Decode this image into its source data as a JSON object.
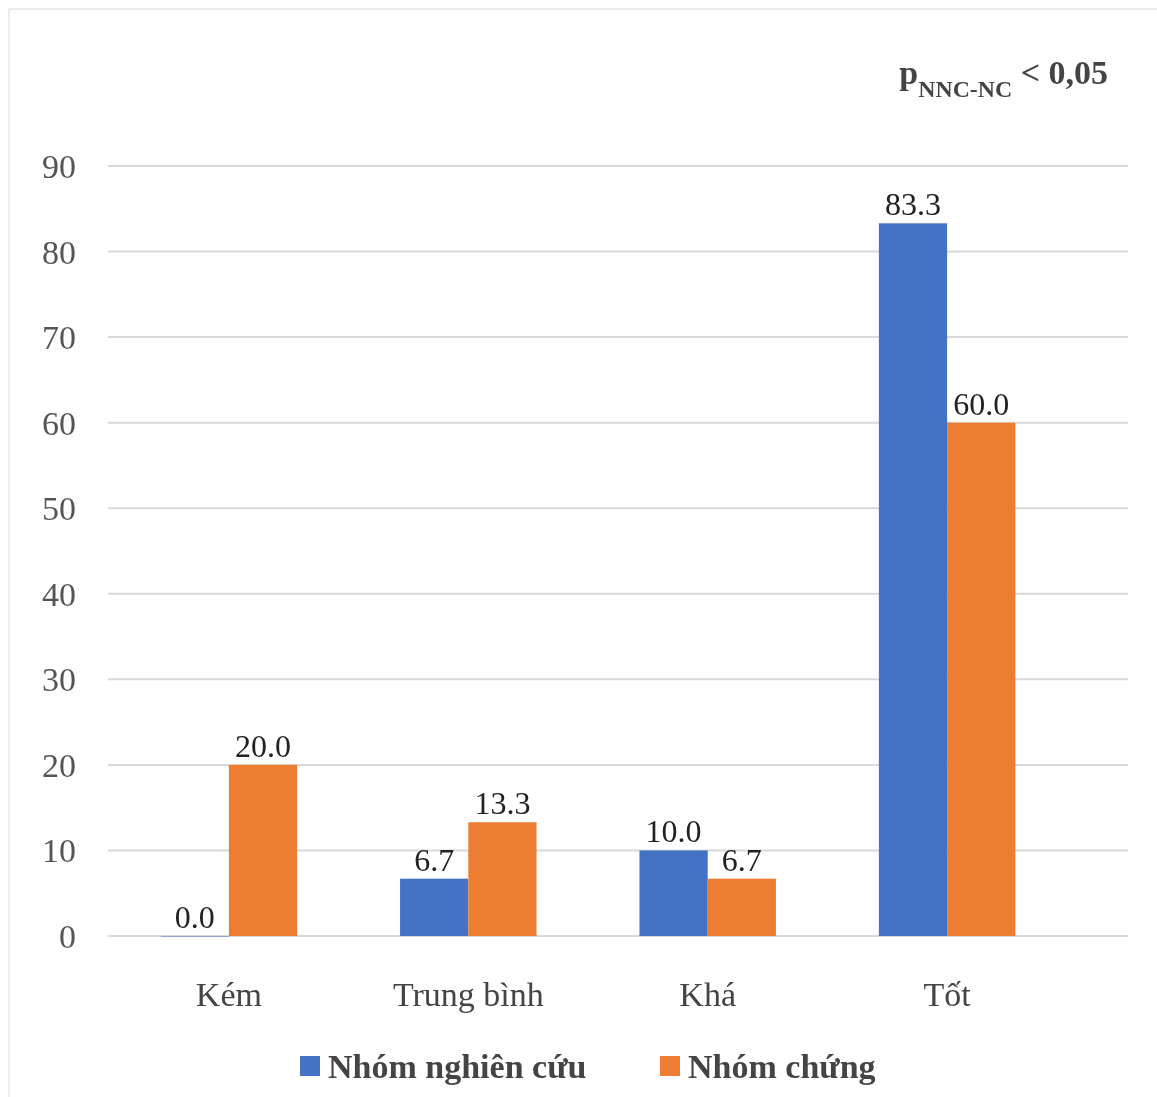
{
  "chart_data": {
    "type": "bar",
    "categories": [
      "Kém",
      "Trung bình",
      "Khá",
      "Tốt"
    ],
    "series": [
      {
        "name": "Nhóm nghiên cứu",
        "color": "#4472c4",
        "values": [
          0,
          6.7,
          10,
          83.3
        ],
        "value_labels": [
          "0.0",
          "6.7",
          "10.0",
          "83.3"
        ]
      },
      {
        "name": "Nhóm chứng",
        "color": "#ed7d31",
        "values": [
          20,
          13.3,
          6.7,
          60
        ],
        "value_labels": [
          "20.0",
          "13.3",
          "6.7",
          "60.0"
        ]
      }
    ],
    "ylim": [
      0,
      90
    ],
    "yticks": [
      0,
      10,
      20,
      30,
      40,
      50,
      60,
      70,
      80,
      90
    ],
    "grid": "y",
    "legend": "bottom",
    "annotations": [
      "p$_{NNC-NC}$ < 0,05"
    ]
  }
}
